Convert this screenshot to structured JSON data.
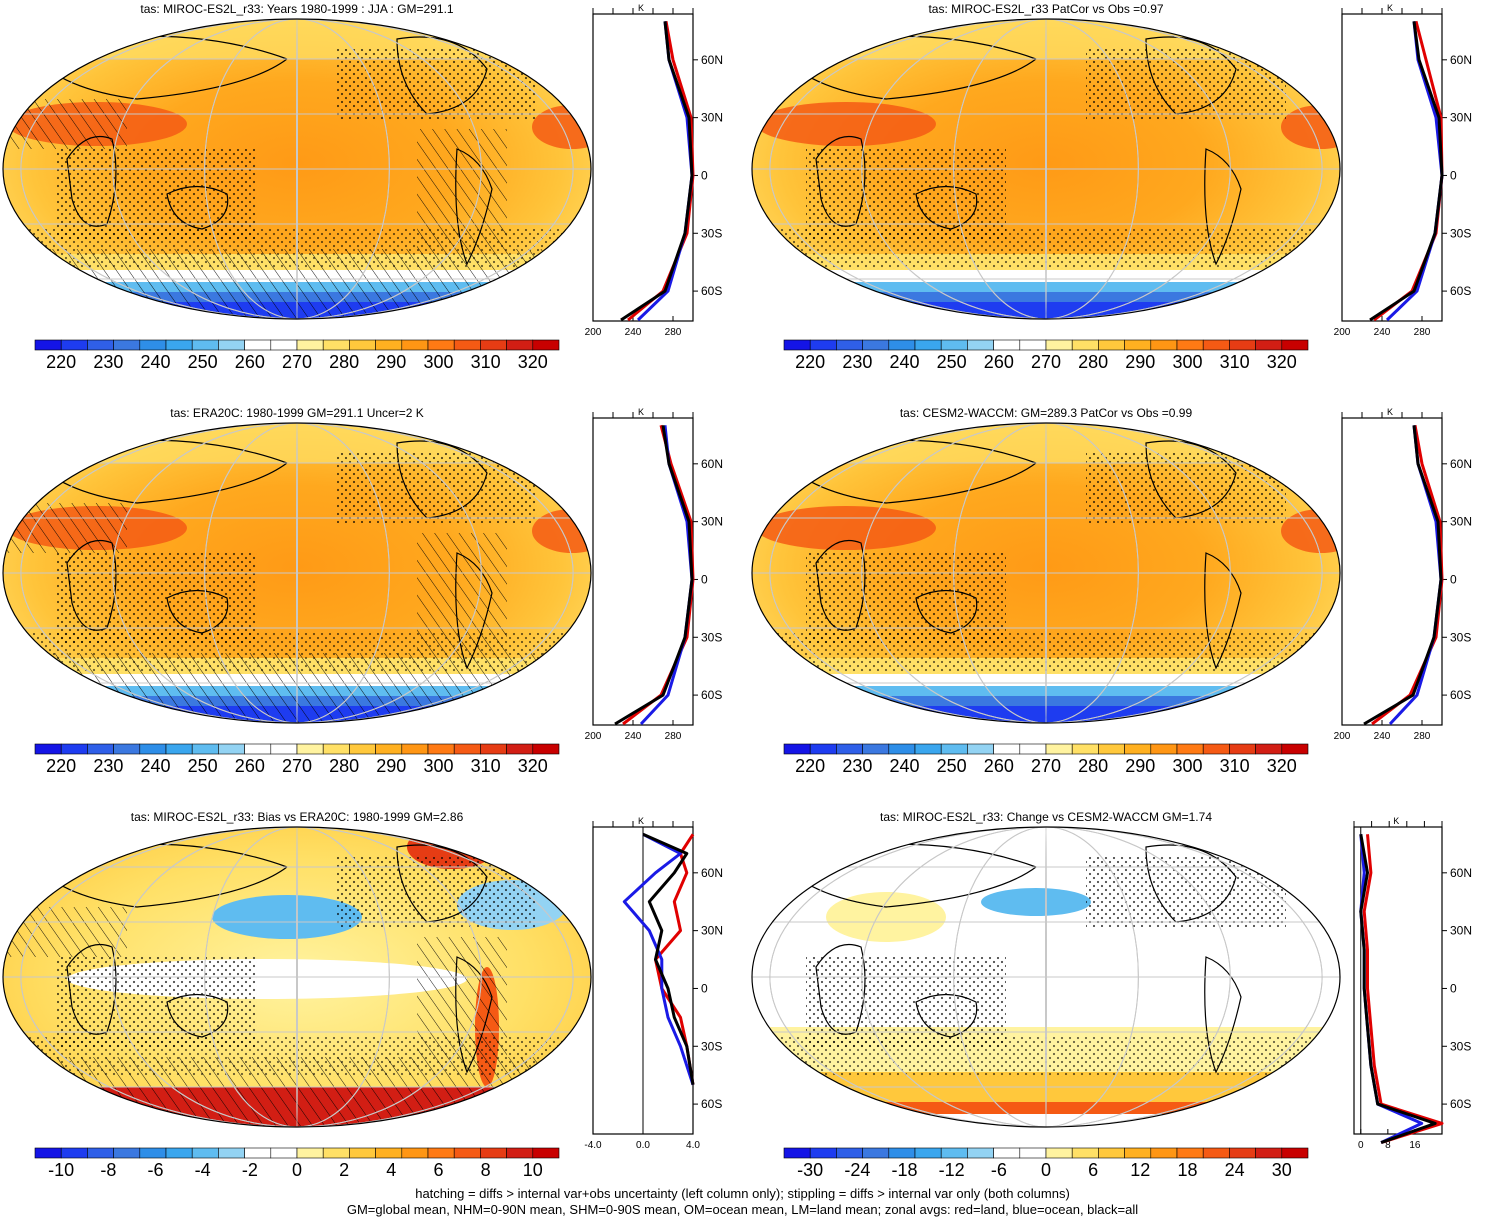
{
  "colors": {
    "abs_scale": [
      "#1414e6",
      "#1e3cf0",
      "#2f5fe8",
      "#3b78e0",
      "#2e8ee8",
      "#3aa6ee",
      "#5fbcf0",
      "#93d3f3",
      "#ffffff",
      "#ffffff",
      "#fff3a0",
      "#ffe066",
      "#ffc83c",
      "#ffb020",
      "#ff9614",
      "#ff7a14",
      "#f55a14",
      "#e63c14",
      "#d21e14",
      "#c80000"
    ],
    "diff_scale": [
      "#1414e6",
      "#1e3cf0",
      "#2f5fe8",
      "#3b78e0",
      "#2e8ee8",
      "#3aa6ee",
      "#5fbcf0",
      "#93d3f3",
      "#ffffff",
      "#ffffff",
      "#fff3a0",
      "#ffe066",
      "#ffc83c",
      "#ffb020",
      "#ff9614",
      "#ff7a14",
      "#f55a14",
      "#e63c14",
      "#d21e14",
      "#c80000"
    ],
    "land": "#e00000",
    "ocean": "#1a1ae6",
    "all": "#000000"
  },
  "panels": [
    {
      "id": "p1",
      "title": "tas: MIROC-ES2L_r33: Years 1980-1999 : JJA : GM=291.1",
      "colorbar": [
        "220",
        "230",
        "240",
        "250",
        "260",
        "270",
        "280",
        "290",
        "300",
        "310",
        "320"
      ],
      "zonal": {
        "unit": "K",
        "lat_ticks": [
          "60N",
          "30N",
          "0",
          "30S",
          "60S"
        ],
        "x_ticks": [
          "200",
          "240",
          "280"
        ]
      }
    },
    {
      "id": "p2",
      "title": "tas: MIROC-ES2L_r33 PatCor vs Obs =0.97",
      "colorbar": [
        "220",
        "230",
        "240",
        "250",
        "260",
        "270",
        "280",
        "290",
        "300",
        "310",
        "320"
      ],
      "zonal": {
        "unit": "K",
        "lat_ticks": [
          "60N",
          "30N",
          "0",
          "30S",
          "60S"
        ],
        "x_ticks": [
          "200",
          "240",
          "280"
        ]
      }
    },
    {
      "id": "p3",
      "title": "tas: ERA20C: 1980-1999 GM=291.1 Uncer=2 K",
      "colorbar": [
        "220",
        "230",
        "240",
        "250",
        "260",
        "270",
        "280",
        "290",
        "300",
        "310",
        "320"
      ],
      "zonal": {
        "unit": "K",
        "lat_ticks": [
          "60N",
          "30N",
          "0",
          "30S",
          "60S"
        ],
        "x_ticks": [
          "200",
          "240",
          "280"
        ]
      }
    },
    {
      "id": "p4",
      "title": "tas: CESM2-WACCM: GM=289.3 PatCor vs Obs =0.99",
      "colorbar": [
        "220",
        "230",
        "240",
        "250",
        "260",
        "270",
        "280",
        "290",
        "300",
        "310",
        "320"
      ],
      "zonal": {
        "unit": "K",
        "lat_ticks": [
          "60N",
          "30N",
          "0",
          "30S",
          "60S"
        ],
        "x_ticks": [
          "200",
          "240",
          "280"
        ]
      }
    },
    {
      "id": "p5",
      "title": "tas: MIROC-ES2L_r33: Bias vs ERA20C: 1980-1999 GM=2.86",
      "colorbar": [
        "-10",
        "-8",
        "-6",
        "-4",
        "-2",
        "0",
        "2",
        "4",
        "6",
        "8",
        "10"
      ],
      "zonal": {
        "unit": "K",
        "lat_ticks": [
          "60N",
          "30N",
          "0",
          "30S",
          "60S"
        ],
        "x_ticks": [
          "-4.0",
          "0.0",
          "4.0"
        ]
      }
    },
    {
      "id": "p6",
      "title": "tas: MIROC-ES2L_r33: Change vs CESM2-WACCM GM=1.74",
      "colorbar": [
        "-30",
        "-24",
        "-18",
        "-12",
        "-6",
        "0",
        "6",
        "12",
        "18",
        "24",
        "30"
      ],
      "zonal": {
        "unit": "K",
        "lat_ticks": [
          "60N",
          "30N",
          "0",
          "30S",
          "60S"
        ],
        "x_ticks": [
          "0",
          "8",
          "16"
        ]
      }
    }
  ],
  "footer": {
    "line1": "hatching = diffs > internal var+obs uncertainty (left column only); stippling = diffs > internal var only (both columns)",
    "line2": "GM=global mean, NHM=0-90N mean, SHM=0-90S mean, OM=ocean mean, LM=land mean; zonal avgs: red=land, blue=ocean, black=all"
  },
  "chart_data": [
    {
      "type": "heatmap",
      "title": "tas: MIROC-ES2L_r33: Years 1980-1999 : JJA : GM=291.1",
      "colorbar_range": [
        215,
        325
      ],
      "colorbar_ticks": [
        220,
        230,
        240,
        250,
        260,
        270,
        280,
        290,
        300,
        310,
        320
      ],
      "zonal_mean": {
        "unit": "K",
        "xlim": [
          200,
          300
        ],
        "x_ticks": [
          200,
          240,
          280
        ],
        "lat": [
          80,
          60,
          30,
          0,
          -30,
          -60,
          -75
        ],
        "all": [
          272,
          276,
          296,
          299,
          292,
          272,
          228
        ],
        "land": [
          273,
          280,
          298,
          300,
          294,
          270,
          235
        ],
        "ocean": [
          272,
          276,
          294,
          299,
          292,
          275,
          245
        ]
      }
    },
    {
      "type": "heatmap",
      "title": "tas: MIROC-ES2L_r33 PatCor vs Obs =0.97",
      "colorbar_range": [
        215,
        325
      ],
      "colorbar_ticks": [
        220,
        230,
        240,
        250,
        260,
        270,
        280,
        290,
        300,
        310,
        320
      ],
      "zonal_mean": {
        "unit": "K",
        "xlim": [
          200,
          300
        ],
        "x_ticks": [
          200,
          240,
          280
        ],
        "lat": [
          80,
          60,
          30,
          0,
          -30,
          -60,
          -75
        ],
        "all": [
          272,
          277,
          297,
          300,
          293,
          272,
          228
        ],
        "land": [
          274,
          284,
          299,
          300,
          294,
          270,
          232
        ],
        "ocean": [
          272,
          276,
          294,
          300,
          293,
          275,
          245
        ]
      }
    },
    {
      "type": "heatmap",
      "title": "tas: ERA20C: 1980-1999 GM=291.1 Uncer=2 K",
      "colorbar_range": [
        215,
        325
      ],
      "colorbar_ticks": [
        220,
        230,
        240,
        250,
        260,
        270,
        280,
        290,
        300,
        310,
        320
      ],
      "zonal_mean": {
        "unit": "K",
        "xlim": [
          200,
          300
        ],
        "x_ticks": [
          200,
          240,
          280
        ],
        "lat": [
          80,
          60,
          30,
          0,
          -30,
          -60,
          -75
        ],
        "all": [
          270,
          276,
          296,
          299,
          292,
          270,
          222
        ],
        "land": [
          268,
          278,
          298,
          300,
          294,
          268,
          230
        ],
        "ocean": [
          272,
          276,
          294,
          299,
          292,
          275,
          248
        ]
      }
    },
    {
      "type": "heatmap",
      "title": "tas: CESM2-WACCM: GM=289.3 PatCor vs Obs =0.99",
      "colorbar_range": [
        215,
        325
      ],
      "colorbar_ticks": [
        220,
        230,
        240,
        250,
        260,
        270,
        280,
        290,
        300,
        310,
        320
      ],
      "zonal_mean": {
        "unit": "K",
        "xlim": [
          200,
          300
        ],
        "x_ticks": [
          200,
          240,
          280
        ],
        "lat": [
          80,
          60,
          30,
          0,
          -30,
          -60,
          -75
        ],
        "all": [
          272,
          276,
          296,
          299,
          292,
          271,
          222
        ],
        "land": [
          273,
          280,
          298,
          300,
          294,
          268,
          230
        ],
        "ocean": [
          272,
          276,
          294,
          299,
          292,
          275,
          248
        ]
      }
    },
    {
      "type": "heatmap",
      "title": "tas: MIROC-ES2L_r33: Bias vs ERA20C: 1980-1999 GM=2.86",
      "colorbar_range": [
        -11,
        11
      ],
      "colorbar_ticks": [
        -10,
        -8,
        -6,
        -4,
        -2,
        0,
        2,
        4,
        6,
        8,
        10
      ],
      "zonal_mean": {
        "unit": "K",
        "xlim": [
          -4,
          4
        ],
        "x_ticks": [
          -4,
          0,
          4
        ],
        "lat": [
          80,
          70,
          60,
          45,
          30,
          15,
          0,
          -15,
          -30,
          -50
        ],
        "all": [
          0,
          3.5,
          2.5,
          0.5,
          1.5,
          1.0,
          2.0,
          2.5,
          3.5,
          4.0
        ],
        "land": [
          4,
          3.0,
          3.5,
          2.5,
          3.0,
          1.0,
          1.5,
          3.0,
          3.5,
          4.0
        ],
        "ocean": [
          0,
          3.0,
          1.0,
          -1.5,
          0.5,
          1.5,
          1.5,
          2.0,
          3.0,
          4.0
        ]
      }
    },
    {
      "type": "heatmap",
      "title": "tas: MIROC-ES2L_r33: Change vs CESM2-WACCM GM=1.74",
      "colorbar_range": [
        -33,
        33
      ],
      "colorbar_ticks": [
        -30,
        -24,
        -18,
        -12,
        -6,
        0,
        6,
        12,
        18,
        24,
        30
      ],
      "zonal_mean": {
        "unit": "K",
        "xlim": [
          -2,
          24
        ],
        "x_ticks": [
          0,
          8,
          16
        ],
        "lat": [
          80,
          60,
          40,
          20,
          0,
          -20,
          -40,
          -60,
          -70,
          -80
        ],
        "all": [
          0,
          2,
          0,
          1,
          1,
          2,
          3,
          5,
          22,
          6
        ],
        "land": [
          2,
          3,
          1,
          2,
          2,
          3,
          4,
          6,
          24,
          6
        ],
        "ocean": [
          0,
          1,
          0,
          1,
          1,
          2,
          3,
          5,
          18,
          6
        ]
      }
    }
  ]
}
